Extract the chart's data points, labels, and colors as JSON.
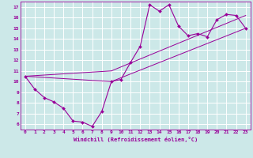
{
  "xlabel": "Windchill (Refroidissement éolien,°C)",
  "bg_color": "#cce8e8",
  "grid_color": "#ffffff",
  "line_color": "#990099",
  "xlim": [
    -0.5,
    23.5
  ],
  "ylim": [
    5.5,
    17.5
  ],
  "xticks": [
    0,
    1,
    2,
    3,
    4,
    5,
    6,
    7,
    8,
    9,
    10,
    11,
    12,
    13,
    14,
    15,
    16,
    17,
    18,
    19,
    20,
    21,
    22,
    23
  ],
  "yticks": [
    6,
    7,
    8,
    9,
    10,
    11,
    12,
    13,
    14,
    15,
    16,
    17
  ],
  "series1": {
    "x": [
      0,
      1,
      2,
      3,
      4,
      5,
      6,
      7,
      8,
      9,
      10,
      11,
      12,
      13,
      14,
      15,
      16,
      17,
      18,
      19,
      20,
      21,
      22,
      23
    ],
    "y": [
      10.5,
      9.3,
      8.5,
      8.1,
      7.5,
      6.3,
      6.2,
      5.8,
      7.2,
      10.0,
      10.2,
      11.8,
      13.3,
      17.2,
      16.6,
      17.2,
      15.2,
      14.3,
      14.5,
      14.2,
      15.8,
      16.3,
      16.2,
      15.0
    ]
  },
  "series2": {
    "x": [
      0,
      9,
      23
    ],
    "y": [
      10.5,
      11.0,
      16.2
    ]
  },
  "series3": {
    "x": [
      0,
      9,
      23
    ],
    "y": [
      10.5,
      10.0,
      15.0
    ]
  }
}
